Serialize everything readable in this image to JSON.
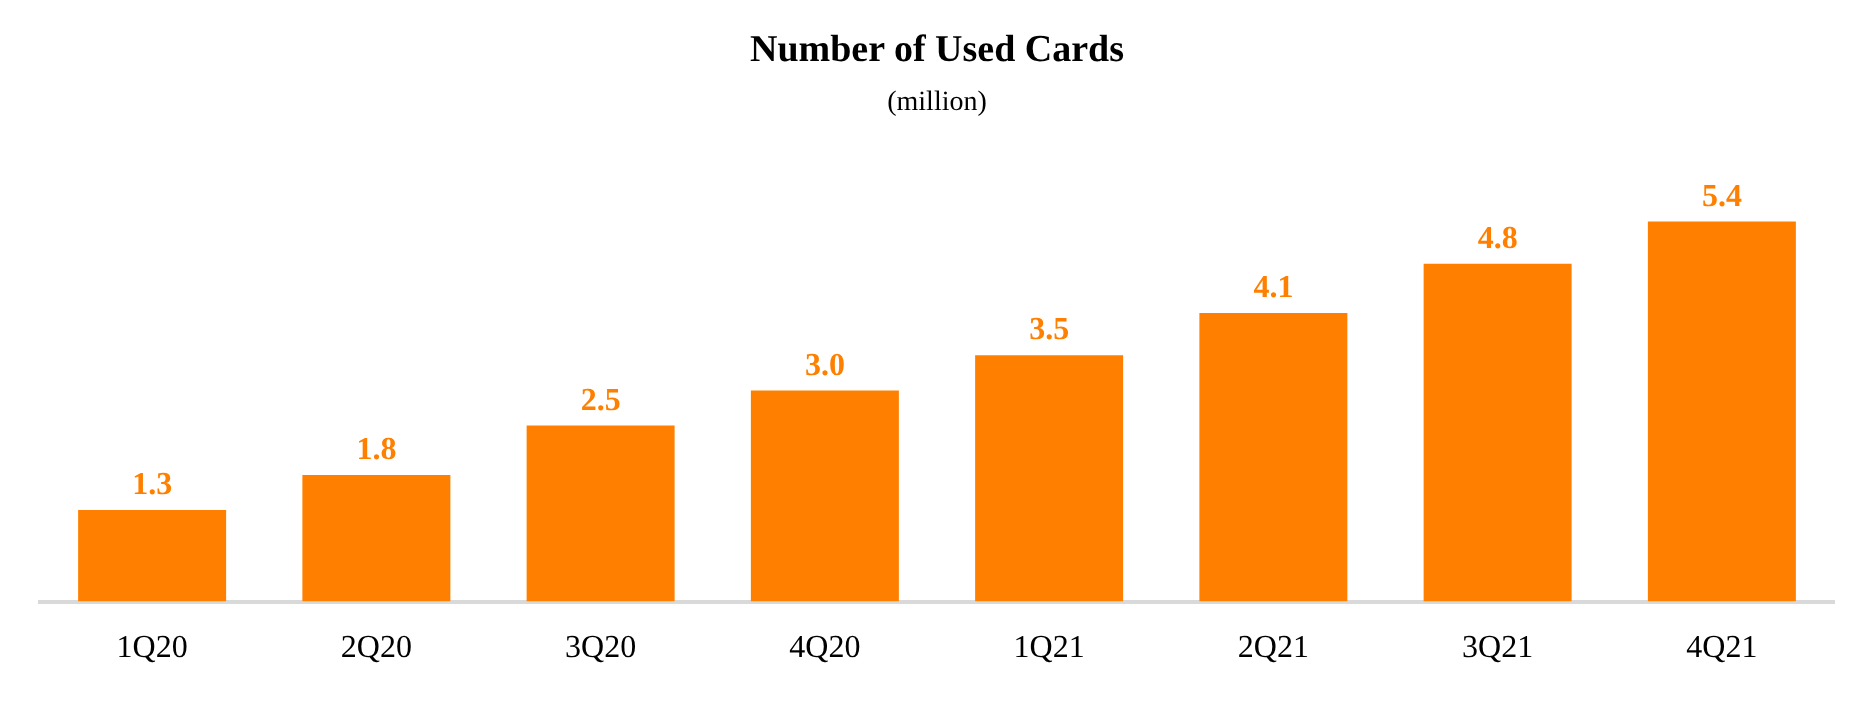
{
  "chart_data": {
    "type": "bar",
    "title": "Number of Used Cards",
    "subtitle": "(million)",
    "categories": [
      "1Q20",
      "2Q20",
      "3Q20",
      "4Q20",
      "1Q21",
      "2Q21",
      "3Q21",
      "4Q21"
    ],
    "values": [
      1.3,
      1.8,
      2.5,
      3.0,
      3.5,
      4.1,
      4.8,
      5.4
    ],
    "value_labels": [
      "1.3",
      "1.8",
      "2.5",
      "3.0",
      "3.5",
      "4.1",
      "4.8",
      "5.4"
    ],
    "color": "#ff8000",
    "grid": false,
    "legend": false
  }
}
